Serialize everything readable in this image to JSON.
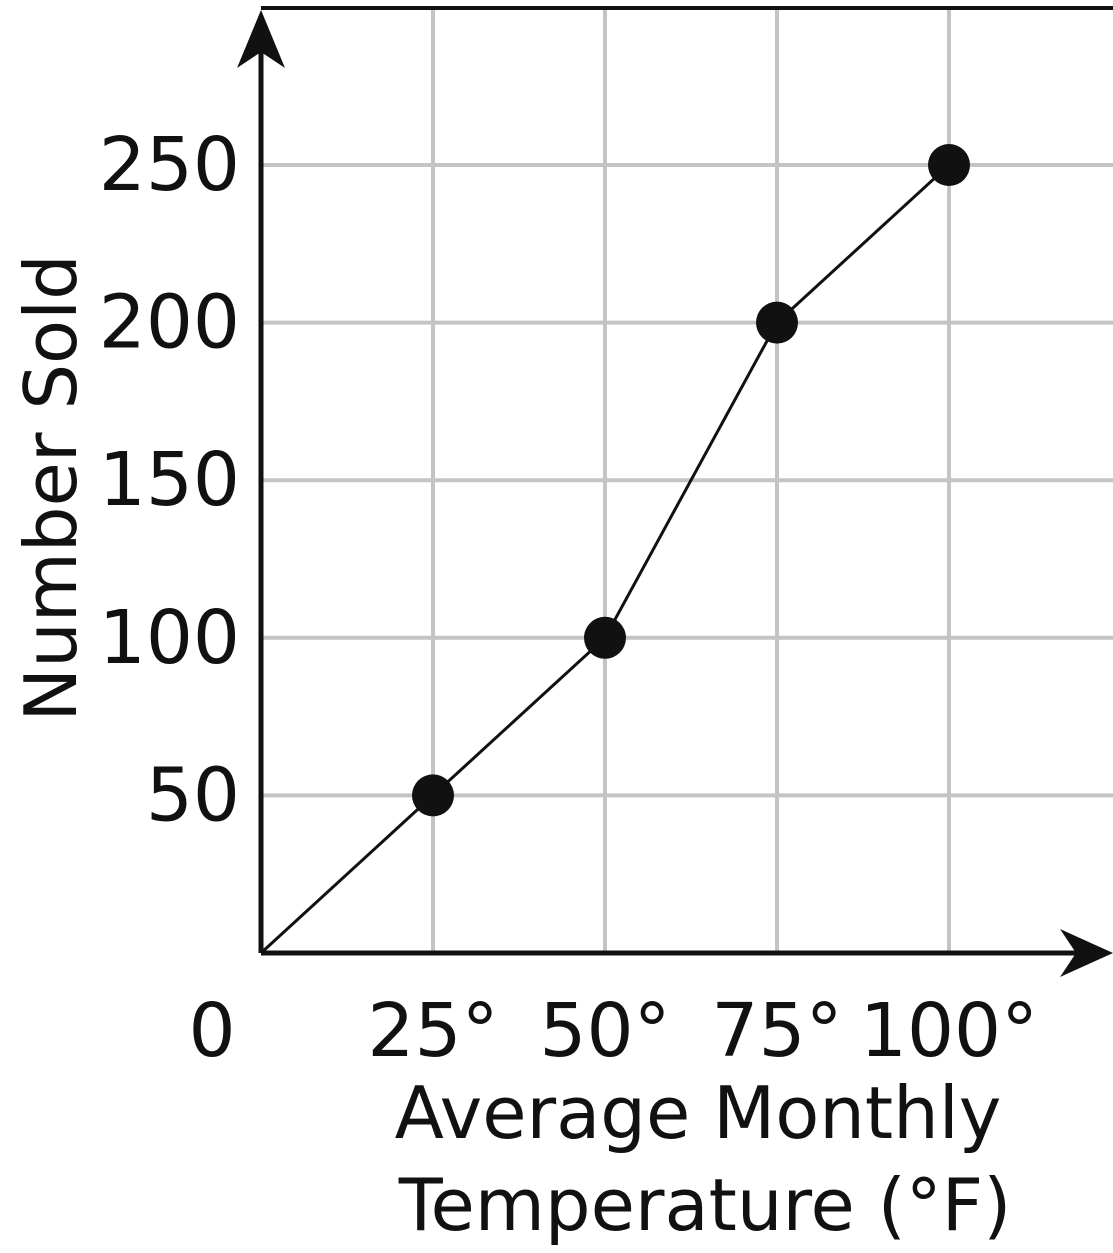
{
  "chart_data": {
    "type": "line",
    "title": "",
    "xlabel": [
      "Average Monthly",
      "Temperature (°F)"
    ],
    "ylabel": "Number Sold",
    "origin_label": "0",
    "x_ticks": [
      {
        "value": 25,
        "label": "25°"
      },
      {
        "value": 50,
        "label": "50°"
      },
      {
        "value": 75,
        "label": "75°"
      },
      {
        "value": 100,
        "label": "100°"
      }
    ],
    "y_ticks": [
      {
        "value": 50,
        "label": "50"
      },
      {
        "value": 100,
        "label": "100"
      },
      {
        "value": 150,
        "label": "150"
      },
      {
        "value": 200,
        "label": "200"
      },
      {
        "value": 250,
        "label": "250"
      }
    ],
    "xlim": [
      0,
      125
    ],
    "ylim": [
      0,
      300
    ],
    "grid": true,
    "series": [
      {
        "points": [
          {
            "x": 0,
            "y": 0,
            "marker": false
          },
          {
            "x": 25,
            "y": 50,
            "marker": true
          },
          {
            "x": 50,
            "y": 100,
            "marker": true
          },
          {
            "x": 75,
            "y": 200,
            "marker": true
          },
          {
            "x": 100,
            "y": 250,
            "marker": true
          }
        ]
      }
    ],
    "colors": {
      "axis": "#111111",
      "grid": "#c4c4c4",
      "line": "#111111",
      "marker": "#111111"
    }
  }
}
